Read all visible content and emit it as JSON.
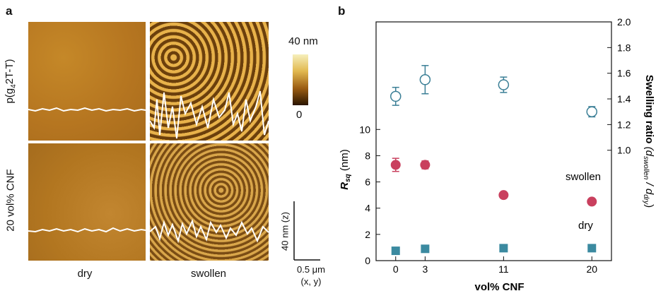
{
  "panel_a": {
    "letter": "a",
    "row_labels": [
      "p(g4 2T-T)",
      "20 vol% CNF"
    ],
    "row_label_parts": {
      "pre": "p(g",
      "sub": "4",
      "post": "2T-T)"
    },
    "col_labels": [
      "dry",
      "swollen"
    ],
    "colorbar": {
      "max_label": "40 nm",
      "min_label": "0",
      "top_color": "#f3e9b6",
      "bottom_color": "#1c0b00"
    },
    "scalebar": {
      "z_label": "40 nm (z)",
      "xy_label": "0.5 μm",
      "xy_sub": "(x, y)"
    },
    "tile_colors": {
      "dry_p": "#b97a20",
      "dry_cnf": "#b77c25",
      "swollen_p": "#7a4a10",
      "swollen_cnf": "#8a5a1a"
    }
  },
  "panel_b": {
    "letter": "b"
  },
  "chart_data": {
    "type": "scatter",
    "xlabel": "vol% CNF",
    "ylabel": "R",
    "ylabel_sub": "sq",
    "ylabel_unit": "(nm)",
    "y2label": "Swelling ratio",
    "y2label_detail": "(d",
    "y2label_sub1": "swollen",
    "y2label_mid": " / d",
    "y2label_sub2": "dry",
    "y2label_end": ")",
    "x_ticks": [
      0,
      3,
      11,
      20
    ],
    "x_tick_labels": [
      "0",
      "3",
      "11",
      "20"
    ],
    "y_ticks": [
      0,
      2,
      4,
      6,
      8,
      10
    ],
    "y_tick_labels": [
      "0",
      "2",
      "4",
      "6",
      "8",
      "10"
    ],
    "y2_ticks": [
      1.0,
      1.2,
      1.4,
      1.6,
      1.8,
      2.0
    ],
    "y2_tick_labels": [
      "1.0",
      "1.2",
      "1.4",
      "1.6",
      "1.8",
      "2.0"
    ],
    "xlim": [
      -2,
      22
    ],
    "ylim": [
      0,
      18.2
    ],
    "y2lim": [
      0.14,
      2.0
    ],
    "series": [
      {
        "name": "swollen",
        "marker": "circle",
        "color": "#c9405e",
        "axis": "left",
        "x": [
          0,
          3,
          11,
          20
        ],
        "y": [
          7.3,
          7.3,
          5.0,
          4.5
        ],
        "err": [
          0.5,
          0.3,
          0.0,
          0.0
        ]
      },
      {
        "name": "dry",
        "marker": "square",
        "color": "#3b8aa0",
        "axis": "left",
        "x": [
          0,
          3,
          11,
          20
        ],
        "y": [
          0.75,
          0.9,
          0.95,
          0.95
        ],
        "err": [
          0,
          0,
          0,
          0
        ]
      },
      {
        "name": "",
        "marker": "open-circle",
        "color": "#3b7f96",
        "axis": "right",
        "x": [
          0,
          3,
          11,
          20
        ],
        "y": [
          1.42,
          1.55,
          1.51,
          1.3
        ],
        "err": [
          0.07,
          0.11,
          0.06,
          0.04
        ]
      }
    ]
  }
}
